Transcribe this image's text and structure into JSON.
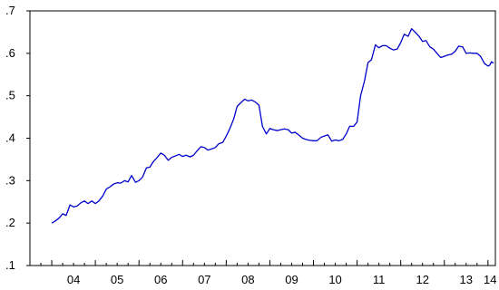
{
  "chart_data": {
    "type": "line",
    "title": "",
    "xlabel": "",
    "ylabel": "",
    "x_range": [
      2003.5,
      2014.17
    ],
    "ylim": [
      0.1,
      0.7
    ],
    "y_ticks": [
      {
        "value": 0.1,
        "label": ".1"
      },
      {
        "value": 0.2,
        "label": ".2"
      },
      {
        "value": 0.3,
        "label": ".3"
      },
      {
        "value": 0.4,
        "label": ".4"
      },
      {
        "value": 0.5,
        "label": ".5"
      },
      {
        "value": 0.6,
        "label": ".6"
      },
      {
        "value": 0.7,
        "label": ".7"
      }
    ],
    "x_ticks": [
      {
        "value": 2004.5,
        "label": "04"
      },
      {
        "value": 2005.5,
        "label": "05"
      },
      {
        "value": 2006.5,
        "label": "06"
      },
      {
        "value": 2007.5,
        "label": "07"
      },
      {
        "value": 2008.5,
        "label": "08"
      },
      {
        "value": 2009.5,
        "label": "09"
      },
      {
        "value": 2010.5,
        "label": "10"
      },
      {
        "value": 2011.5,
        "label": "11"
      },
      {
        "value": 2012.5,
        "label": "12"
      },
      {
        "value": 2013.5,
        "label": "13"
      },
      {
        "value": 2014.05,
        "label": "14"
      }
    ],
    "grid": false,
    "line_color": "#0000cc",
    "series": [
      {
        "points": [
          [
            2004.0,
            0.2
          ],
          [
            2004.08,
            0.205
          ],
          [
            2004.17,
            0.212
          ],
          [
            2004.25,
            0.222
          ],
          [
            2004.33,
            0.218
          ],
          [
            2004.42,
            0.243
          ],
          [
            2004.5,
            0.238
          ],
          [
            2004.58,
            0.24
          ],
          [
            2004.67,
            0.248
          ],
          [
            2004.75,
            0.252
          ],
          [
            2004.83,
            0.246
          ],
          [
            2004.92,
            0.252
          ],
          [
            2005.0,
            0.246
          ],
          [
            2005.08,
            0.252
          ],
          [
            2005.17,
            0.264
          ],
          [
            2005.25,
            0.28
          ],
          [
            2005.33,
            0.285
          ],
          [
            2005.42,
            0.292
          ],
          [
            2005.5,
            0.295
          ],
          [
            2005.58,
            0.294
          ],
          [
            2005.67,
            0.3
          ],
          [
            2005.75,
            0.297
          ],
          [
            2005.83,
            0.312
          ],
          [
            2005.92,
            0.296
          ],
          [
            2006.0,
            0.3
          ],
          [
            2006.08,
            0.308
          ],
          [
            2006.17,
            0.33
          ],
          [
            2006.25,
            0.332
          ],
          [
            2006.33,
            0.345
          ],
          [
            2006.42,
            0.355
          ],
          [
            2006.5,
            0.365
          ],
          [
            2006.58,
            0.36
          ],
          [
            2006.67,
            0.348
          ],
          [
            2006.75,
            0.355
          ],
          [
            2006.83,
            0.358
          ],
          [
            2006.92,
            0.362
          ],
          [
            2007.0,
            0.357
          ],
          [
            2007.08,
            0.36
          ],
          [
            2007.17,
            0.356
          ],
          [
            2007.25,
            0.36
          ],
          [
            2007.33,
            0.37
          ],
          [
            2007.42,
            0.38
          ],
          [
            2007.5,
            0.378
          ],
          [
            2007.58,
            0.372
          ],
          [
            2007.67,
            0.375
          ],
          [
            2007.75,
            0.378
          ],
          [
            2007.83,
            0.387
          ],
          [
            2007.92,
            0.39
          ],
          [
            2008.0,
            0.405
          ],
          [
            2008.08,
            0.422
          ],
          [
            2008.17,
            0.445
          ],
          [
            2008.25,
            0.475
          ],
          [
            2008.33,
            0.483
          ],
          [
            2008.42,
            0.492
          ],
          [
            2008.5,
            0.488
          ],
          [
            2008.58,
            0.49
          ],
          [
            2008.67,
            0.485
          ],
          [
            2008.75,
            0.478
          ],
          [
            2008.83,
            0.428
          ],
          [
            2008.92,
            0.41
          ],
          [
            2009.0,
            0.423
          ],
          [
            2009.08,
            0.42
          ],
          [
            2009.17,
            0.418
          ],
          [
            2009.25,
            0.42
          ],
          [
            2009.33,
            0.422
          ],
          [
            2009.42,
            0.42
          ],
          [
            2009.5,
            0.412
          ],
          [
            2009.58,
            0.414
          ],
          [
            2009.67,
            0.407
          ],
          [
            2009.75,
            0.4
          ],
          [
            2009.83,
            0.397
          ],
          [
            2009.92,
            0.395
          ],
          [
            2010.0,
            0.394
          ],
          [
            2010.08,
            0.394
          ],
          [
            2010.17,
            0.402
          ],
          [
            2010.25,
            0.405
          ],
          [
            2010.33,
            0.408
          ],
          [
            2010.42,
            0.393
          ],
          [
            2010.5,
            0.396
          ],
          [
            2010.58,
            0.394
          ],
          [
            2010.67,
            0.397
          ],
          [
            2010.75,
            0.41
          ],
          [
            2010.83,
            0.428
          ],
          [
            2010.92,
            0.428
          ],
          [
            2011.0,
            0.438
          ],
          [
            2011.08,
            0.5
          ],
          [
            2011.17,
            0.535
          ],
          [
            2011.25,
            0.578
          ],
          [
            2011.33,
            0.585
          ],
          [
            2011.42,
            0.62
          ],
          [
            2011.5,
            0.613
          ],
          [
            2011.58,
            0.618
          ],
          [
            2011.67,
            0.618
          ],
          [
            2011.75,
            0.612
          ],
          [
            2011.83,
            0.608
          ],
          [
            2011.92,
            0.61
          ],
          [
            2012.0,
            0.625
          ],
          [
            2012.08,
            0.645
          ],
          [
            2012.17,
            0.64
          ],
          [
            2012.25,
            0.658
          ],
          [
            2012.33,
            0.65
          ],
          [
            2012.42,
            0.64
          ],
          [
            2012.5,
            0.628
          ],
          [
            2012.58,
            0.63
          ],
          [
            2012.67,
            0.615
          ],
          [
            2012.75,
            0.61
          ],
          [
            2012.83,
            0.6
          ],
          [
            2012.92,
            0.59
          ],
          [
            2013.0,
            0.593
          ],
          [
            2013.08,
            0.596
          ],
          [
            2013.17,
            0.598
          ],
          [
            2013.25,
            0.605
          ],
          [
            2013.33,
            0.617
          ],
          [
            2013.42,
            0.615
          ],
          [
            2013.5,
            0.6
          ],
          [
            2013.58,
            0.601
          ],
          [
            2013.67,
            0.6
          ],
          [
            2013.75,
            0.6
          ],
          [
            2013.83,
            0.593
          ],
          [
            2013.92,
            0.576
          ],
          [
            2014.0,
            0.57
          ],
          [
            2014.04,
            0.572
          ],
          [
            2014.08,
            0.58
          ],
          [
            2014.13,
            0.577
          ]
        ]
      }
    ]
  }
}
